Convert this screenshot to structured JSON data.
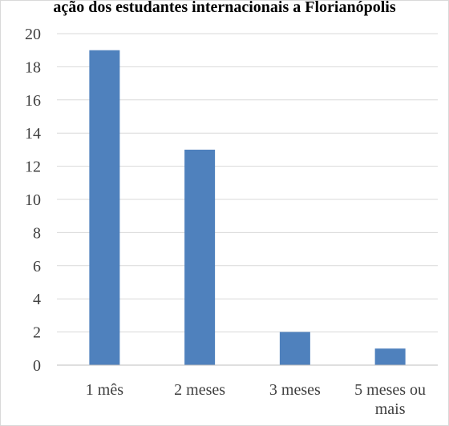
{
  "chart_data": {
    "type": "bar",
    "title": "ação dos estudantes internacionais a Florianópolis",
    "xlabel": "",
    "ylabel": "",
    "categories": [
      "1 mês",
      "2 meses",
      "3 meses",
      "5 meses ou mais"
    ],
    "category_lines": [
      [
        "1 mês"
      ],
      [
        "2 meses"
      ],
      [
        "3 meses"
      ],
      [
        "5 meses ou",
        "mais"
      ]
    ],
    "values": [
      19,
      13,
      2,
      1
    ],
    "ylim": [
      0,
      20
    ],
    "yticks": [
      0,
      2,
      4,
      6,
      8,
      10,
      12,
      14,
      16,
      18,
      20
    ],
    "grid": true,
    "legend": "none",
    "colors": {
      "bar": "#4f81bd",
      "grid": "#d9d9d9",
      "axis": "#bfbfbf",
      "text": "#404040"
    }
  }
}
